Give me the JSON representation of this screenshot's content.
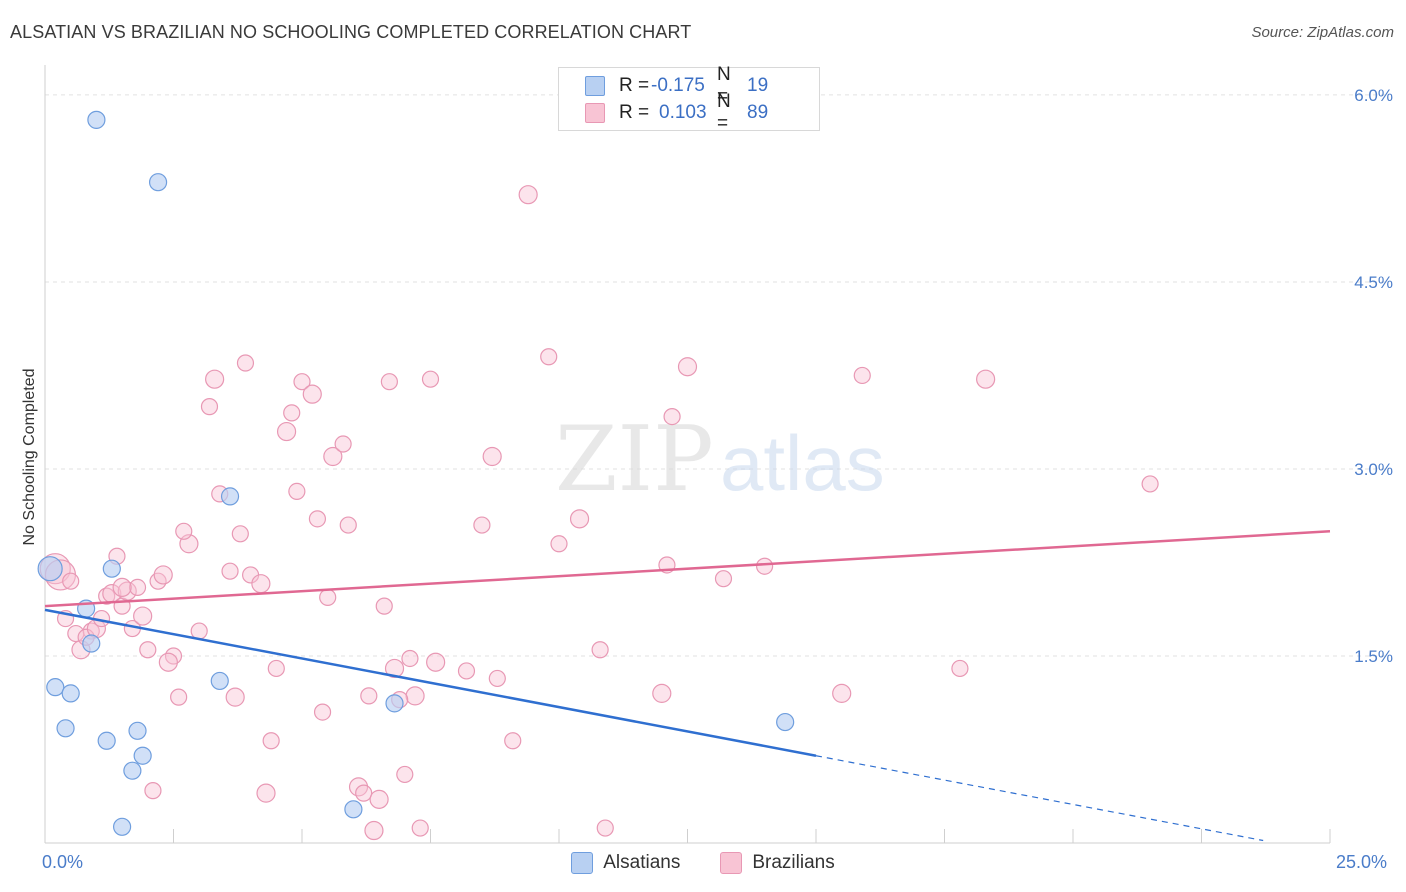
{
  "header": {
    "title": "ALSATIAN VS BRAZILIAN NO SCHOOLING COMPLETED CORRELATION CHART",
    "source": "Source: ZipAtlas.com"
  },
  "watermark": {
    "zip": "ZIP",
    "atlas": "atlas"
  },
  "legend_top": {
    "rows": [
      {
        "r_label": "R =",
        "r_value": "-0.175",
        "n_label": "N =",
        "n_value": "19"
      },
      {
        "r_label": "R =",
        "r_value": "0.103",
        "n_label": "N =",
        "n_value": "89"
      }
    ]
  },
  "legend_bottom": {
    "items": [
      "Alsatians",
      "Brazilians"
    ]
  },
  "axes": {
    "x_min_label": "0.0%",
    "x_max_label": "25.0%",
    "y_ticks": [
      "1.5%",
      "3.0%",
      "4.5%",
      "6.0%"
    ],
    "ylabel": "No Schooling Completed"
  },
  "colors": {
    "alsatian_fill": "#b8d0f2",
    "alsatian_stroke": "#6f9ede",
    "alsatian_line": "#2f6fd0",
    "brazilian_fill": "#f8c4d4",
    "brazilian_stroke": "#e898b4",
    "brazilian_line": "#e06892",
    "tick_text": "#4a7cc9"
  },
  "chart_data": {
    "type": "scatter",
    "xlim": [
      0,
      25
    ],
    "ylim": [
      0,
      6.2
    ],
    "grid": true,
    "series": [
      {
        "name": "Alsatians",
        "points": [
          [
            0.1,
            2.2
          ],
          [
            1.0,
            5.8
          ],
          [
            2.2,
            5.3
          ],
          [
            3.6,
            2.78
          ],
          [
            1.3,
            2.2
          ],
          [
            0.8,
            1.88
          ],
          [
            0.9,
            1.6
          ],
          [
            0.2,
            1.25
          ],
          [
            0.5,
            1.2
          ],
          [
            3.4,
            1.3
          ],
          [
            0.4,
            0.92
          ],
          [
            1.2,
            0.82
          ],
          [
            1.8,
            0.9
          ],
          [
            1.9,
            0.7
          ],
          [
            1.7,
            0.58
          ],
          [
            6.8,
            1.12
          ],
          [
            14.4,
            0.97
          ],
          [
            1.5,
            0.13
          ],
          [
            6.0,
            0.27
          ]
        ],
        "trend": {
          "x0": 0,
          "y0": 1.87,
          "x1": 15.0,
          "y1": 0.7,
          "dash_to_x": 23.7,
          "dash_to_y": 0.02
        }
      },
      {
        "name": "Brazilians",
        "points": [
          [
            0.2,
            2.2
          ],
          [
            0.4,
            1.8
          ],
          [
            0.6,
            1.68
          ],
          [
            0.7,
            1.55
          ],
          [
            0.9,
            1.7
          ],
          [
            0.8,
            1.65
          ],
          [
            1.0,
            1.72
          ],
          [
            1.1,
            1.8
          ],
          [
            1.2,
            1.98
          ],
          [
            1.3,
            2.0
          ],
          [
            1.4,
            2.3
          ],
          [
            1.5,
            1.9
          ],
          [
            1.6,
            2.02
          ],
          [
            1.7,
            1.72
          ],
          [
            1.8,
            2.05
          ],
          [
            1.9,
            1.82
          ],
          [
            2.0,
            1.55
          ],
          [
            2.2,
            2.1
          ],
          [
            2.3,
            2.15
          ],
          [
            2.5,
            1.5
          ],
          [
            2.6,
            1.17
          ],
          [
            2.8,
            2.4
          ],
          [
            3.0,
            1.7
          ],
          [
            3.2,
            3.5
          ],
          [
            3.3,
            3.72
          ],
          [
            3.4,
            2.8
          ],
          [
            3.6,
            2.18
          ],
          [
            3.7,
            1.17
          ],
          [
            3.8,
            2.48
          ],
          [
            4.0,
            2.15
          ],
          [
            4.2,
            2.08
          ],
          [
            4.4,
            0.82
          ],
          [
            4.5,
            1.4
          ],
          [
            4.7,
            3.3
          ],
          [
            4.9,
            2.82
          ],
          [
            5.0,
            3.7
          ],
          [
            5.2,
            3.6
          ],
          [
            5.4,
            1.05
          ],
          [
            5.5,
            1.97
          ],
          [
            5.6,
            3.1
          ],
          [
            5.8,
            3.2
          ],
          [
            5.9,
            2.55
          ],
          [
            6.1,
            0.45
          ],
          [
            6.2,
            0.4
          ],
          [
            6.3,
            1.18
          ],
          [
            6.5,
            0.35
          ],
          [
            6.6,
            1.9
          ],
          [
            6.7,
            3.7
          ],
          [
            6.8,
            1.4
          ],
          [
            7.0,
            0.55
          ],
          [
            7.1,
            1.48
          ],
          [
            7.2,
            1.18
          ],
          [
            7.3,
            0.12
          ],
          [
            7.5,
            3.72
          ],
          [
            7.6,
            1.45
          ],
          [
            8.2,
            1.38
          ],
          [
            8.5,
            2.55
          ],
          [
            8.7,
            3.1
          ],
          [
            8.8,
            1.32
          ],
          [
            9.1,
            0.82
          ],
          [
            9.4,
            5.2
          ],
          [
            9.8,
            3.9
          ],
          [
            10.0,
            2.4
          ],
          [
            10.4,
            2.6
          ],
          [
            10.8,
            1.55
          ],
          [
            10.9,
            0.12
          ],
          [
            12.0,
            1.2
          ],
          [
            12.1,
            2.23
          ],
          [
            12.2,
            3.42
          ],
          [
            12.5,
            3.82
          ],
          [
            13.2,
            2.12
          ],
          [
            14.0,
            2.22
          ],
          [
            15.5,
            1.2
          ],
          [
            15.9,
            3.75
          ],
          [
            17.8,
            1.4
          ],
          [
            18.3,
            3.72
          ],
          [
            21.5,
            2.88
          ],
          [
            0.3,
            2.15
          ],
          [
            2.4,
            1.45
          ],
          [
            2.7,
            2.5
          ],
          [
            3.9,
            3.85
          ],
          [
            4.3,
            0.4
          ],
          [
            4.8,
            3.45
          ],
          [
            5.3,
            2.6
          ],
          [
            6.4,
            0.1
          ],
          [
            6.9,
            1.15
          ],
          [
            2.1,
            0.42
          ],
          [
            1.5,
            2.05
          ],
          [
            0.5,
            2.1
          ]
        ],
        "trend": {
          "x0": 0,
          "y0": 1.9,
          "x1": 25.0,
          "y1": 2.5
        }
      }
    ]
  }
}
